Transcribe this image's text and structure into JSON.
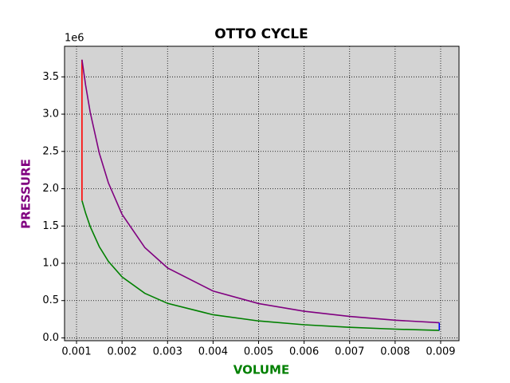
{
  "chart_data": {
    "type": "line",
    "title": "OTTO CYCLE",
    "xlabel": "VOLUME",
    "ylabel": "PRESSURE",
    "xlabel_color": "#008000",
    "ylabel_color": "#800080",
    "y_offset_label": "1e6",
    "background": "#d3d3d3",
    "grid": true,
    "xlim": [
      0.000737,
      0.009403
    ],
    "ylim": [
      -0.038,
      3.91
    ],
    "xticks": [
      0.001,
      0.002,
      0.003,
      0.004,
      0.005,
      0.006,
      0.007,
      0.008,
      0.009
    ],
    "yticks": [
      {
        "value": 0,
        "label": "0.0"
      },
      0.5,
      {
        "value": 1,
        "label": "1.0"
      },
      1.5,
      {
        "value": 2,
        "label": "2.0"
      },
      2.5,
      {
        "value": 3,
        "label": "3.0"
      },
      3.5
    ],
    "series": [
      {
        "color": "#008000",
        "x": [
          0.00112,
          0.0012,
          0.0013,
          0.0015,
          0.0017,
          0.002,
          0.0025,
          0.003,
          0.004,
          0.005,
          0.006,
          0.007,
          0.008,
          0.00897
        ],
        "values": [
          1.841,
          1.672,
          1.494,
          1.223,
          1.026,
          0.818,
          0.598,
          0.463,
          0.31,
          0.227,
          0.176,
          0.142,
          0.117,
          0.1
        ]
      },
      {
        "color": "#ff0000",
        "x": [
          0.00112,
          0.00112
        ],
        "values": [
          1.841,
          3.73
        ]
      },
      {
        "color": "#800080",
        "x": [
          0.00112,
          0.0012,
          0.0013,
          0.0015,
          0.0017,
          0.002,
          0.0025,
          0.003,
          0.004,
          0.005,
          0.006,
          0.007,
          0.008,
          0.00897
        ],
        "values": [
          3.73,
          3.388,
          3.027,
          2.478,
          2.079,
          1.657,
          1.212,
          0.938,
          0.628,
          0.46,
          0.357,
          0.288,
          0.237,
          0.203
        ]
      },
      {
        "color": "#0000ff",
        "x": [
          0.00897,
          0.00897
        ],
        "values": [
          0.203,
          0.1
        ]
      }
    ]
  }
}
